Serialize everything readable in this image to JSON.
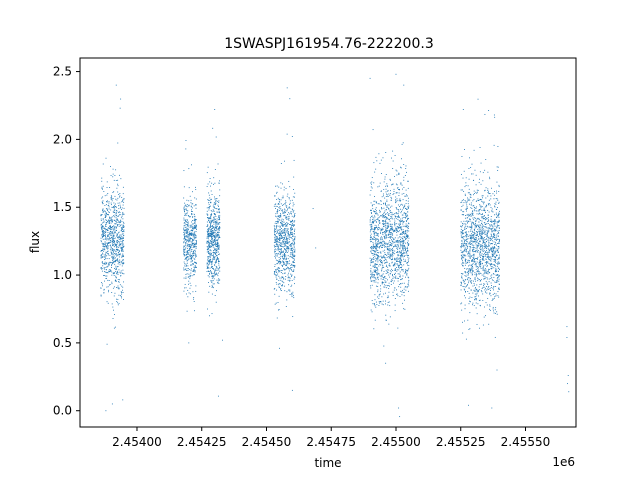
{
  "chart_data": {
    "type": "scatter",
    "title": "1SWASPJ161954.76-222200.3",
    "xlabel": "time",
    "ylabel": "flux",
    "x_offset_label": "1e6",
    "xlim": [
      2453780,
      2455695
    ],
    "ylim": [
      -0.12,
      2.6
    ],
    "x_ticks": [
      2453750,
      2454000,
      2454250,
      2454500,
      2454750,
      2455000,
      2455250,
      2455500
    ],
    "x_tick_labels": [
      "2.45400",
      "2.45425",
      "2.45450",
      "2.45475",
      "2.45500",
      "2.45525",
      "2.45550"
    ],
    "x_tick_values": [
      2454000,
      2454250,
      2454500,
      2454750,
      2455000,
      2455250,
      2455500
    ],
    "y_tick_values": [
      0.0,
      0.5,
      1.0,
      1.5,
      2.0,
      2.5
    ],
    "y_tick_labels": [
      "0.0",
      "0.5",
      "1.0",
      "1.5",
      "2.0",
      "2.5"
    ],
    "color": "#1f77b4",
    "grid": false,
    "seasons": [
      {
        "x_start": 2453860,
        "x_end": 2453950,
        "center": 1.25,
        "spread": 0.19,
        "density": 0.6
      },
      {
        "x_start": 2454180,
        "x_end": 2454230,
        "center": 1.25,
        "spread": 0.16,
        "density": 0.35
      },
      {
        "x_start": 2454270,
        "x_end": 2454320,
        "center": 1.25,
        "spread": 0.17,
        "density": 0.45
      },
      {
        "x_start": 2454530,
        "x_end": 2454610,
        "center": 1.25,
        "spread": 0.18,
        "density": 0.55
      },
      {
        "x_start": 2454900,
        "x_end": 2455050,
        "center": 1.25,
        "spread": 0.22,
        "density": 1.0
      },
      {
        "x_start": 2455250,
        "x_end": 2455400,
        "center": 1.22,
        "spread": 0.22,
        "density": 1.0
      }
    ],
    "outliers": [
      [
        2453880,
        0.0
      ],
      [
        2453920,
        2.4
      ],
      [
        2453935,
        2.23
      ],
      [
        2453945,
        0.08
      ],
      [
        2453905,
        0.05
      ],
      [
        2454200,
        0.5
      ],
      [
        2454280,
        0.7
      ],
      [
        2454300,
        2.22
      ],
      [
        2454330,
        0.52
      ],
      [
        2454580,
        2.38
      ],
      [
        2454590,
        2.3
      ],
      [
        2454600,
        0.15
      ],
      [
        2454550,
        0.46
      ],
      [
        2454680,
        1.49
      ],
      [
        2454690,
        1.2
      ],
      [
        2454900,
        2.45
      ],
      [
        2455000,
        2.48
      ],
      [
        2455010,
        0.02
      ],
      [
        2455030,
        2.4
      ],
      [
        2454960,
        0.35
      ],
      [
        2455260,
        2.22
      ],
      [
        2455280,
        0.04
      ],
      [
        2455370,
        0.02
      ],
      [
        2455390,
        0.3
      ],
      [
        2455380,
        2.18
      ],
      [
        2455660,
        0.62
      ],
      [
        2455660,
        0.54
      ],
      [
        2455665,
        0.26
      ],
      [
        2455667,
        0.14
      ],
      [
        2455662,
        0.2
      ]
    ]
  }
}
